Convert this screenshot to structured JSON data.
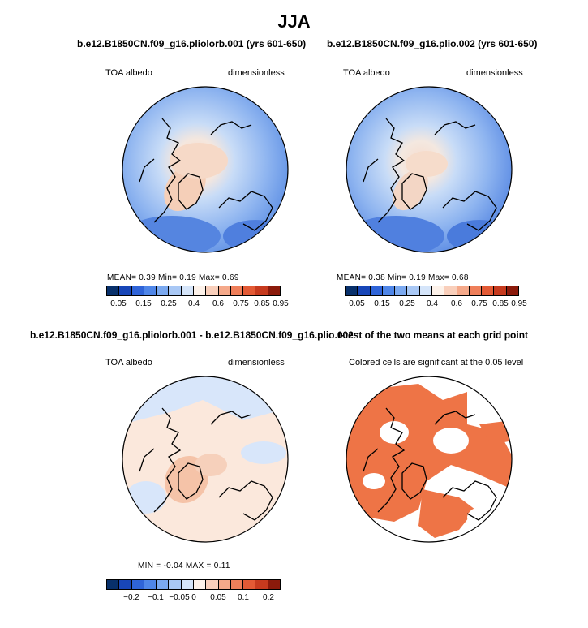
{
  "figure": {
    "title": "JJA"
  },
  "panels": {
    "p1": {
      "title": "b.e12.B1850CN.f09_g16.pliolorb.001 (yrs 601-650)",
      "left_label": "TOA albedo",
      "right_label": "dimensionless",
      "stats": "MEAN=    0.39   Min=    0.19   Max=    0.69"
    },
    "p2": {
      "title": "b.e12.B1850CN.f09_g16.plio.002 (yrs 601-650)",
      "left_label": "TOA albedo",
      "right_label": "dimensionless",
      "stats": "MEAN=    0.38   Min=    0.19   Max=    0.68"
    },
    "p3": {
      "title": "b.e12.B1850CN.f09_g16.pliolorb.001 - b.e12.B1850CN.f09_g16.plio.002",
      "left_label": "TOA albedo",
      "right_label": "dimensionless",
      "stats": "MIN =   -0.04  MAX =     0.11"
    },
    "p4": {
      "title": "t-test of the two means at each grid point",
      "subtitle": "Colored cells are significant at the 0.05 level"
    }
  },
  "colorbars": {
    "absolute": {
      "colors": [
        "#08306b",
        "#1846b8",
        "#2f64d8",
        "#4f86e8",
        "#7ba9f0",
        "#a9c8f5",
        "#d5e5fa",
        "#fdf2ea",
        "#f9cfbb",
        "#f5a98a",
        "#ef7f5a",
        "#e35a35",
        "#c63a1e",
        "#8b1a0b"
      ],
      "tick_labels": [
        "0.05",
        "0.15",
        "0.25",
        "0.4",
        "0.6",
        "0.75",
        "0.85",
        "0.95"
      ]
    },
    "difference": {
      "colors": [
        "#08306b",
        "#1846b8",
        "#2f64d8",
        "#4f86e8",
        "#7ba9f0",
        "#a9c8f5",
        "#d5e5fa",
        "#fdf2ea",
        "#f9cfbb",
        "#f5a98a",
        "#ef7f5a",
        "#e35a35",
        "#c63a1e",
        "#8b1a0b"
      ],
      "tick_labels": [
        "−0.2",
        "−0.1",
        "−0.05",
        "0",
        "0.05",
        "0.1",
        "0.2"
      ]
    }
  },
  "colors": {
    "ocean_low": "#6a98e6",
    "ocean_mid": "#9fc0f2",
    "ice_high": "#f7d6c3",
    "diff_pos": "#fbe8dc",
    "diff_neg": "#d8e6fa",
    "signif": "#ee7446"
  }
}
